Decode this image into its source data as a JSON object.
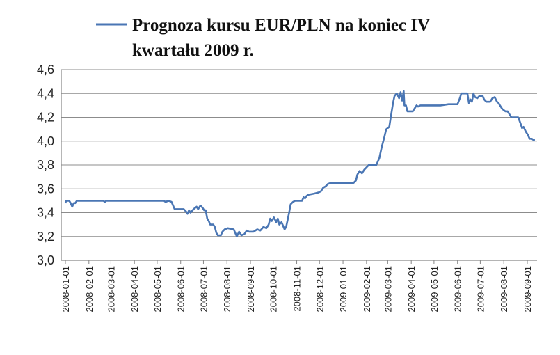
{
  "chart_data": {
    "type": "line",
    "title": "",
    "xlabel": "",
    "ylabel": "",
    "x_ticks": [
      "2008-01-01",
      "2008-02-01",
      "2008-03-01",
      "2008-04-01",
      "2008-05-01",
      "2008-06-01",
      "2008-07-01",
      "2008-08-01",
      "2008-09-01",
      "2008-10-01",
      "2008-11-01",
      "2008-12-01",
      "2009-01-01",
      "2009-02-01",
      "2009-03-01",
      "2009-04-01",
      "2009-05-01",
      "2009-06-01",
      "2009-07-01",
      "2009-08-01",
      "2009-09-01"
    ],
    "y_ticks": [
      "3,0",
      "3,2",
      "3,4",
      "3,6",
      "3,8",
      "4,0",
      "4,2",
      "4,4",
      "4,6"
    ],
    "ylim": [
      3.0,
      4.6
    ],
    "grid": true,
    "legend_position": "top",
    "series": [
      {
        "name": "Prognoza kursu EUR/PLN na koniec IV kwartału 2009 r.",
        "color": "#4a76b4",
        "points": [
          [
            "2008-01-01",
            3.48
          ],
          [
            "2008-01-02",
            3.5
          ],
          [
            "2008-01-06",
            3.5
          ],
          [
            "2008-01-08",
            3.48
          ],
          [
            "2008-01-10",
            3.45
          ],
          [
            "2008-01-12",
            3.48
          ],
          [
            "2008-01-14",
            3.48
          ],
          [
            "2008-01-16",
            3.5
          ],
          [
            "2008-02-01",
            3.5
          ],
          [
            "2008-02-20",
            3.5
          ],
          [
            "2008-02-22",
            3.49
          ],
          [
            "2008-02-24",
            3.5
          ],
          [
            "2008-03-15",
            3.5
          ],
          [
            "2008-04-15",
            3.5
          ],
          [
            "2008-05-10",
            3.5
          ],
          [
            "2008-05-12",
            3.49
          ],
          [
            "2008-05-16",
            3.5
          ],
          [
            "2008-05-20",
            3.49
          ],
          [
            "2008-05-22",
            3.46
          ],
          [
            "2008-05-24",
            3.43
          ],
          [
            "2008-06-05",
            3.43
          ],
          [
            "2008-06-08",
            3.41
          ],
          [
            "2008-06-10",
            3.39
          ],
          [
            "2008-06-12",
            3.42
          ],
          [
            "2008-06-14",
            3.4
          ],
          [
            "2008-06-18",
            3.43
          ],
          [
            "2008-06-22",
            3.45
          ],
          [
            "2008-06-24",
            3.43
          ],
          [
            "2008-06-27",
            3.46
          ],
          [
            "2008-06-30",
            3.44
          ],
          [
            "2008-07-02",
            3.42
          ],
          [
            "2008-07-04",
            3.42
          ],
          [
            "2008-07-06",
            3.35
          ],
          [
            "2008-07-08",
            3.33
          ],
          [
            "2008-07-10",
            3.3
          ],
          [
            "2008-07-14",
            3.3
          ],
          [
            "2008-07-16",
            3.28
          ],
          [
            "2008-07-18",
            3.23
          ],
          [
            "2008-07-20",
            3.21
          ],
          [
            "2008-07-24",
            3.21
          ],
          [
            "2008-07-26",
            3.24
          ],
          [
            "2008-07-29",
            3.26
          ],
          [
            "2008-08-02",
            3.27
          ],
          [
            "2008-08-10",
            3.26
          ],
          [
            "2008-08-12",
            3.23
          ],
          [
            "2008-08-14",
            3.2
          ],
          [
            "2008-08-17",
            3.24
          ],
          [
            "2008-08-20",
            3.21
          ],
          [
            "2008-08-24",
            3.22
          ],
          [
            "2008-08-27",
            3.25
          ],
          [
            "2008-08-30",
            3.24
          ],
          [
            "2008-09-05",
            3.24
          ],
          [
            "2008-09-10",
            3.26
          ],
          [
            "2008-09-14",
            3.25
          ],
          [
            "2008-09-18",
            3.28
          ],
          [
            "2008-09-22",
            3.27
          ],
          [
            "2008-09-25",
            3.3
          ],
          [
            "2008-09-27",
            3.35
          ],
          [
            "2008-09-29",
            3.33
          ],
          [
            "2008-10-02",
            3.36
          ],
          [
            "2008-10-05",
            3.32
          ],
          [
            "2008-10-07",
            3.35
          ],
          [
            "2008-10-09",
            3.3
          ],
          [
            "2008-10-12",
            3.32
          ],
          [
            "2008-10-14",
            3.29
          ],
          [
            "2008-10-16",
            3.26
          ],
          [
            "2008-10-18",
            3.28
          ],
          [
            "2008-10-20",
            3.34
          ],
          [
            "2008-10-22",
            3.4
          ],
          [
            "2008-10-24",
            3.47
          ],
          [
            "2008-10-27",
            3.49
          ],
          [
            "2008-10-30",
            3.5
          ],
          [
            "2008-11-08",
            3.5
          ],
          [
            "2008-11-10",
            3.53
          ],
          [
            "2008-11-12",
            3.52
          ],
          [
            "2008-11-14",
            3.54
          ],
          [
            "2008-11-16",
            3.55
          ],
          [
            "2008-11-24",
            3.56
          ],
          [
            "2008-11-30",
            3.57
          ],
          [
            "2008-12-03",
            3.58
          ],
          [
            "2008-12-06",
            3.61
          ],
          [
            "2008-12-09",
            3.62
          ],
          [
            "2008-12-12",
            3.64
          ],
          [
            "2008-12-16",
            3.65
          ],
          [
            "2009-01-15",
            3.65
          ],
          [
            "2009-01-18",
            3.67
          ],
          [
            "2009-01-20",
            3.72
          ],
          [
            "2009-01-23",
            3.75
          ],
          [
            "2009-01-26",
            3.73
          ],
          [
            "2009-01-29",
            3.76
          ],
          [
            "2009-02-01",
            3.78
          ],
          [
            "2009-02-04",
            3.8
          ],
          [
            "2009-02-14",
            3.8
          ],
          [
            "2009-02-16",
            3.83
          ],
          [
            "2009-02-18",
            3.86
          ],
          [
            "2009-02-21",
            3.95
          ],
          [
            "2009-02-24",
            4.02
          ],
          [
            "2009-02-27",
            4.1
          ],
          [
            "2009-03-03",
            4.12
          ],
          [
            "2009-03-05",
            4.2
          ],
          [
            "2009-03-08",
            4.32
          ],
          [
            "2009-03-10",
            4.38
          ],
          [
            "2009-03-13",
            4.4
          ],
          [
            "2009-03-16",
            4.36
          ],
          [
            "2009-03-18",
            4.41
          ],
          [
            "2009-03-20",
            4.34
          ],
          [
            "2009-03-22",
            4.42
          ],
          [
            "2009-03-23",
            4.3
          ],
          [
            "2009-03-25",
            4.3
          ],
          [
            "2009-03-27",
            4.25
          ],
          [
            "2009-04-03",
            4.25
          ],
          [
            "2009-04-06",
            4.28
          ],
          [
            "2009-04-08",
            4.3
          ],
          [
            "2009-04-10",
            4.29
          ],
          [
            "2009-04-13",
            4.3
          ],
          [
            "2009-05-10",
            4.3
          ],
          [
            "2009-05-20",
            4.31
          ],
          [
            "2009-06-01",
            4.31
          ],
          [
            "2009-06-04",
            4.36
          ],
          [
            "2009-06-06",
            4.4
          ],
          [
            "2009-06-14",
            4.4
          ],
          [
            "2009-06-16",
            4.32
          ],
          [
            "2009-06-18",
            4.35
          ],
          [
            "2009-06-20",
            4.33
          ],
          [
            "2009-06-22",
            4.4
          ],
          [
            "2009-06-24",
            4.37
          ],
          [
            "2009-06-27",
            4.36
          ],
          [
            "2009-06-30",
            4.38
          ],
          [
            "2009-07-04",
            4.38
          ],
          [
            "2009-07-06",
            4.35
          ],
          [
            "2009-07-09",
            4.33
          ],
          [
            "2009-07-14",
            4.33
          ],
          [
            "2009-07-17",
            4.36
          ],
          [
            "2009-07-20",
            4.37
          ],
          [
            "2009-07-23",
            4.33
          ],
          [
            "2009-07-25",
            4.32
          ],
          [
            "2009-07-27",
            4.3
          ],
          [
            "2009-07-30",
            4.27
          ],
          [
            "2009-08-03",
            4.25
          ],
          [
            "2009-08-06",
            4.25
          ],
          [
            "2009-08-09",
            4.22
          ],
          [
            "2009-08-11",
            4.2
          ],
          [
            "2009-08-20",
            4.2
          ],
          [
            "2009-08-23",
            4.15
          ],
          [
            "2009-08-25",
            4.11
          ],
          [
            "2009-08-27",
            4.12
          ],
          [
            "2009-08-30",
            4.08
          ],
          [
            "2009-09-02",
            4.05
          ],
          [
            "2009-09-04",
            4.02
          ],
          [
            "2009-09-07",
            4.02
          ],
          [
            "2009-09-09",
            4.01
          ],
          [
            "2009-09-11",
            4.01
          ]
        ]
      }
    ]
  }
}
